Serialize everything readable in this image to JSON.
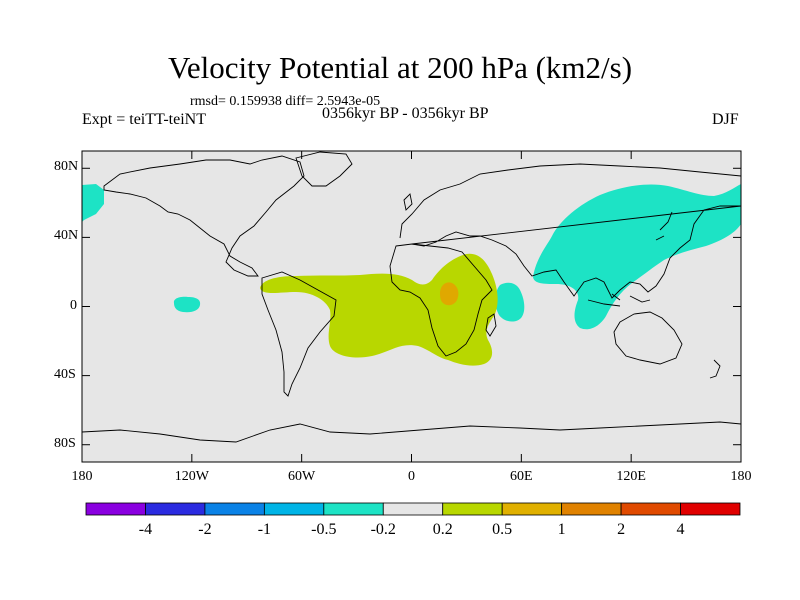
{
  "title": "Velocity Potential at 200 hPa (km2/s)",
  "stats": "rmsd= 0.159938 diff= 2.5943e-05",
  "left_label": "Expt = teiTT-teiNT",
  "center_label": "0356kyr BP - 0356kyr BP",
  "right_label": "DJF",
  "map": {
    "projection": "cylindrical equidistant",
    "lon_range": [
      -180,
      180
    ],
    "lat_range": [
      -90,
      90
    ],
    "lat_ticks": [
      {
        "value": 80,
        "label": "80N"
      },
      {
        "value": 40,
        "label": "40N"
      },
      {
        "value": 0,
        "label": "0"
      },
      {
        "value": -40,
        "label": "40S"
      },
      {
        "value": -80,
        "label": "80S"
      }
    ],
    "lon_ticks": [
      {
        "value": -180,
        "label": "180"
      },
      {
        "value": -120,
        "label": "120W"
      },
      {
        "value": -60,
        "label": "60W"
      },
      {
        "value": 0,
        "label": "0"
      },
      {
        "value": 60,
        "label": "60E"
      },
      {
        "value": 120,
        "label": "120E"
      },
      {
        "value": 180,
        "label": "180"
      }
    ],
    "background_color": "#e6e6e6",
    "regions": [
      {
        "name": "negative-anomaly-north-atlantic",
        "class": "-0.5 to -0.2",
        "color": "#1de3c5"
      },
      {
        "name": "negative-anomaly-east-pacific",
        "class": "-0.5 to -0.2",
        "color": "#1de3c5"
      },
      {
        "name": "negative-anomaly-asia-west-pacific",
        "class": "-0.5 to -0.2",
        "color": "#1de3c5"
      },
      {
        "name": "negative-anomaly-indian-ocean",
        "class": "-0.5 to -0.2",
        "color": "#1de3c5"
      },
      {
        "name": "positive-anomaly-tropical-atlantic-africa",
        "class": "0.2 to 0.5",
        "color": "#b8d700"
      },
      {
        "name": "positive-anomaly-central-africa",
        "class": "0.5 to 1",
        "color": "#e0a800"
      }
    ]
  },
  "colorbar": {
    "labels": [
      "-4",
      "-2",
      "-1",
      "-0.5",
      "-0.2",
      "0.2",
      "0.5",
      "1",
      "2",
      "4"
    ],
    "colors": [
      "#8a00e0",
      "#2b2be0",
      "#0a82e6",
      "#00b4e6",
      "#1de3c5",
      "#e6e6e6",
      "#b8d700",
      "#e0b000",
      "#e08200",
      "#e04a00",
      "#e00000"
    ]
  }
}
